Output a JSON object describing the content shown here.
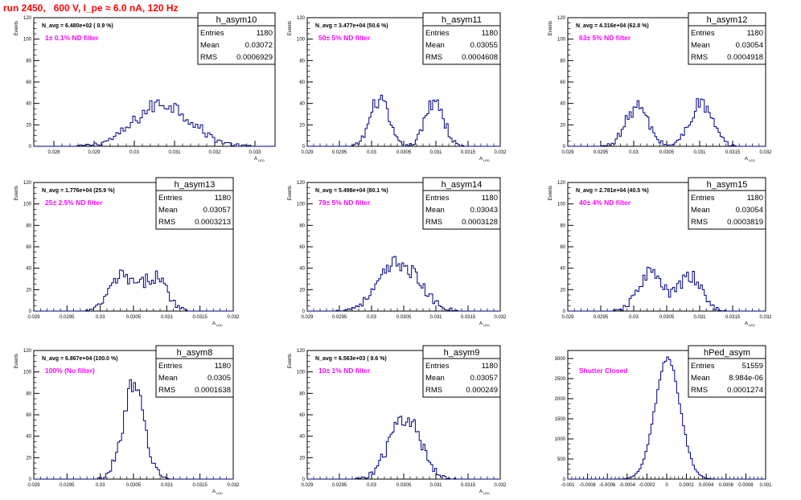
{
  "page_title": "run 2450,   600 V, I_pe ≈ 6.0 nA, 120 Hz",
  "colors": {
    "title": "#ff0000",
    "hist_line": "#000080",
    "annotation": "#ff00ff",
    "axis": "#000000"
  },
  "chart_data": [
    {
      "type": "histogram",
      "name": "h_asym10",
      "stats": {
        "Entries": "1180",
        "Mean": "0.03072",
        "RMS": "0.0006929"
      },
      "navg": "N_avg = 6.480e+02 ( 0.9 %)",
      "filter": "1± 0.1% ND filter",
      "ylabel": "Events",
      "xlabel": "A_LED",
      "xlim": [
        0.0275,
        0.0335
      ],
      "ylim": [
        0,
        120
      ],
      "yticks": [
        0,
        20,
        40,
        60,
        80,
        100,
        120
      ],
      "xticks": [
        0.028,
        0.029,
        0.03,
        0.031,
        0.032,
        0.033
      ],
      "xtick_labels": [
        "0.028",
        "0.029",
        "0.03",
        "0.031",
        "0.032",
        "0.033"
      ],
      "peaks": [
        {
          "mu": 0.03072,
          "sigma": 0.00069,
          "amp": 40
        }
      ]
    },
    {
      "type": "histogram",
      "name": "h_asym11",
      "stats": {
        "Entries": "1180",
        "Mean": "0.03055",
        "RMS": "0.0004608"
      },
      "navg": "N_avg = 3.477e+04 (50.6 %)",
      "filter": "50± 5% ND filter",
      "ylabel": "Events",
      "xlabel": "A_LED",
      "xlim": [
        0.029,
        0.032
      ],
      "ylim": [
        0,
        120
      ],
      "yticks": [
        0,
        20,
        40,
        60,
        80,
        100,
        120
      ],
      "xticks": [
        0.029,
        0.0295,
        0.03,
        0.0305,
        0.031,
        0.0315,
        0.032
      ],
      "xtick_labels": [
        "0.029",
        "0.0295",
        "0.03",
        "0.0305",
        "0.031",
        "0.0315",
        "0.032"
      ],
      "peaks": [
        {
          "mu": 0.03012,
          "sigma": 0.00014,
          "amp": 44
        },
        {
          "mu": 0.03098,
          "sigma": 0.00014,
          "amp": 44
        }
      ]
    },
    {
      "type": "histogram",
      "name": "h_asym12",
      "stats": {
        "Entries": "1180",
        "Mean": "0.03054",
        "RMS": "0.0004918"
      },
      "navg": "N_avg = 4.316e+04 (62.8 %)",
      "filter": "63± 5% ND filter",
      "ylabel": "Events",
      "xlabel": "A_LED",
      "xlim": [
        0.029,
        0.032
      ],
      "ylim": [
        0,
        120
      ],
      "yticks": [
        0,
        20,
        40,
        60,
        80,
        100,
        120
      ],
      "xticks": [
        0.029,
        0.0295,
        0.03,
        0.0305,
        0.031,
        0.0315,
        0.032
      ],
      "xtick_labels": [
        "0.029",
        "0.0295",
        "0.03",
        "0.0305",
        "0.031",
        "0.0315",
        "0.032"
      ],
      "peaks": [
        {
          "mu": 0.03005,
          "sigma": 0.00017,
          "amp": 37
        },
        {
          "mu": 0.03102,
          "sigma": 0.00017,
          "amp": 40
        }
      ]
    },
    {
      "type": "histogram",
      "name": "h_asym13",
      "stats": {
        "Entries": "1180",
        "Mean": "0.03057",
        "RMS": "0.0003213"
      },
      "navg": "N_avg = 1.776e+04 (25.9 %)",
      "filter": "25± 2.5% ND filter",
      "ylabel": "Events",
      "xlabel": "A_LED",
      "xlim": [
        0.029,
        0.032
      ],
      "ylim": [
        0,
        120
      ],
      "yticks": [
        0,
        20,
        40,
        60,
        80,
        100,
        120
      ],
      "xticks": [
        0.029,
        0.0295,
        0.03,
        0.0305,
        0.031,
        0.0315,
        0.032
      ],
      "xtick_labels": [
        "0.029",
        "0.0295",
        "0.03",
        "0.0305",
        "0.031",
        "0.0315",
        "0.032"
      ],
      "peaks": [
        {
          "mu": 0.03032,
          "sigma": 0.00018,
          "amp": 32
        },
        {
          "mu": 0.03082,
          "sigma": 0.00018,
          "amp": 32
        }
      ]
    },
    {
      "type": "histogram",
      "name": "h_asym14",
      "stats": {
        "Entries": "1180",
        "Mean": "0.03043",
        "RMS": "0.0003128"
      },
      "navg": "N_avg = 5.498e+04 (80.1 %)",
      "filter": "79± 5% ND filter",
      "ylabel": "Events",
      "xlabel": "A_LED",
      "xlim": [
        0.029,
        0.032
      ],
      "ylim": [
        0,
        120
      ],
      "yticks": [
        0,
        20,
        40,
        60,
        80,
        100,
        120
      ],
      "xticks": [
        0.029,
        0.0295,
        0.03,
        0.0305,
        0.031,
        0.0315,
        0.032
      ],
      "xtick_labels": [
        "0.029",
        "0.0295",
        "0.03",
        "0.0305",
        "0.031",
        "0.0315",
        "0.032"
      ],
      "peaks": [
        {
          "mu": 0.03043,
          "sigma": 0.00031,
          "amp": 45
        }
      ]
    },
    {
      "type": "histogram",
      "name": "h_asym15",
      "stats": {
        "Entries": "1180",
        "Mean": "0.03054",
        "RMS": "0.0003819"
      },
      "navg": "N_avg = 2.781e+04 (40.5 %)",
      "filter": "40± 4% ND filter",
      "ylabel": "Events",
      "xlabel": "A_LED",
      "xlim": [
        0.029,
        0.032
      ],
      "ylim": [
        0,
        120
      ],
      "yticks": [
        0,
        20,
        40,
        60,
        80,
        100,
        120
      ],
      "xticks": [
        0.029,
        0.0295,
        0.03,
        0.0305,
        0.031,
        0.0315,
        0.032
      ],
      "xtick_labels": [
        "0.029",
        "0.0295",
        "0.03",
        "0.0305",
        "0.031",
        "0.0315",
        "0.032"
      ],
      "peaks": [
        {
          "mu": 0.03025,
          "sigma": 0.00018,
          "amp": 36
        },
        {
          "mu": 0.03085,
          "sigma": 0.00018,
          "amp": 32
        }
      ]
    },
    {
      "type": "histogram",
      "name": "h_asym8",
      "stats": {
        "Entries": "1180",
        "Mean": "0.0305",
        "RMS": "0.0001638"
      },
      "navg": "N_avg = 6.867e+04 (100.0 %)",
      "filter": "100% (No filter)",
      "ylabel": "Events",
      "xlabel": "A_LED",
      "xlim": [
        0.029,
        0.032
      ],
      "ylim": [
        0,
        120
      ],
      "yticks": [
        0,
        20,
        40,
        60,
        80,
        100,
        120
      ],
      "xticks": [
        0.029,
        0.0295,
        0.03,
        0.0305,
        0.031,
        0.0315,
        0.032
      ],
      "xtick_labels": [
        "0.029",
        "0.0295",
        "0.03",
        "0.0305",
        "0.031",
        "0.0315",
        "0.032"
      ],
      "peaks": [
        {
          "mu": 0.0305,
          "sigma": 0.000164,
          "amp": 85
        }
      ]
    },
    {
      "type": "histogram",
      "name": "h_asym9",
      "stats": {
        "Entries": "1180",
        "Mean": "0.03057",
        "RMS": "0.000249"
      },
      "navg": "N_avg = 6.563e+03 ( 9.6 %)",
      "filter": "10± 1% ND filter",
      "ylabel": "Events",
      "xlabel": "A_LED",
      "xlim": [
        0.029,
        0.032
      ],
      "ylim": [
        0,
        120
      ],
      "yticks": [
        0,
        20,
        40,
        60,
        80,
        100,
        120
      ],
      "xticks": [
        0.029,
        0.0295,
        0.03,
        0.0305,
        0.031,
        0.0315,
        0.032
      ],
      "xtick_labels": [
        "0.029",
        "0.0295",
        "0.03",
        "0.0305",
        "0.031",
        "0.0315",
        "0.032"
      ],
      "peaks": [
        {
          "mu": 0.03052,
          "sigma": 0.00024,
          "amp": 58
        }
      ]
    },
    {
      "type": "histogram",
      "name": "hPed_asym",
      "stats": {
        "Entries": "51559",
        "Mean": "8.984e-06",
        "RMS": "0.0001274"
      },
      "navg": "",
      "filter": "Shutter Closed",
      "ylabel": "",
      "xlabel": "",
      "xlim": [
        -0.001,
        0.001
      ],
      "ylim": [
        0,
        3200
      ],
      "yticks": [
        0,
        500,
        1000,
        1500,
        2000,
        2500,
        3000
      ],
      "xticks": [
        -0.001,
        -0.0008,
        -0.0006,
        -0.0004,
        -0.0002,
        0,
        0.0002,
        0.0004,
        0.0006,
        0.0008,
        0.001
      ],
      "xtick_labels": [
        "-0.001",
        "-0.0008",
        "-0.0006",
        "-0.0004",
        "-0.0002",
        "0",
        "0.0002",
        "0.0004",
        "0.0006",
        "0.0008",
        "0.001"
      ],
      "peaks": [
        {
          "mu": 9e-06,
          "sigma": 0.000127,
          "amp": 2980
        }
      ]
    }
  ]
}
